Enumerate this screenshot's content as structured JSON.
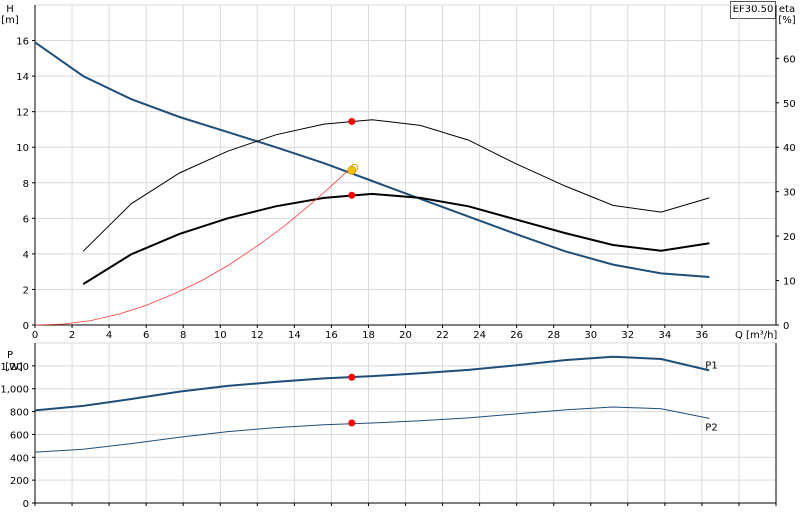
{
  "model_label": "EF30.50",
  "colors": {
    "head": "#1f4e79",
    "eta": "#000000",
    "npsh": "#ff3b3b",
    "dot": "#ff0000",
    "op": "#f2c200",
    "grid": "#d9d9d9"
  },
  "chart_data": [
    {
      "type": "line",
      "id": "top",
      "xlabel": "Q [m³/h]",
      "ylabel": "H\n[m]",
      "ylabel_right": "eta\n[%]",
      "xlim": [
        0,
        40
      ],
      "ylim": [
        0,
        18
      ],
      "ylim_right": [
        0,
        72
      ],
      "xticks": [
        0,
        2,
        4,
        6,
        8,
        10,
        12,
        14,
        16,
        18,
        20,
        22,
        24,
        26,
        28,
        30,
        32,
        34,
        36
      ],
      "yticks": [
        0,
        2,
        4,
        6,
        8,
        10,
        12,
        14,
        16
      ],
      "yticks_right": [
        0,
        10,
        20,
        30,
        40,
        50,
        60
      ],
      "grid": true,
      "series": [
        {
          "role": "head",
          "axis": "left",
          "x": [
            0,
            2.6,
            5.2,
            7.8,
            10.4,
            13.0,
            15.6,
            18.2,
            20.8,
            23.4,
            26.0,
            28.6,
            31.2,
            33.8,
            36.4
          ],
          "values": [
            15.9,
            14.0,
            12.7,
            11.7,
            10.85,
            10.0,
            9.1,
            8.1,
            7.1,
            6.1,
            5.1,
            4.15,
            3.4,
            2.9,
            2.7
          ]
        },
        {
          "role": "eta1",
          "axis": "right",
          "x": [
            2.6,
            5.2,
            7.8,
            10.4,
            13.0,
            15.6,
            18.2,
            20.8,
            23.4,
            26.0,
            28.6,
            31.2,
            33.8,
            36.4
          ],
          "values": [
            16.6,
            27.3,
            34.2,
            39.1,
            42.8,
            45.2,
            46.2,
            44.9,
            41.6,
            36.2,
            31.3,
            26.9,
            25.4,
            28.6
          ]
        },
        {
          "role": "eta2",
          "axis": "right",
          "x": [
            2.6,
            5.2,
            7.8,
            10.4,
            13.0,
            15.6,
            18.2,
            20.8,
            23.4,
            26.0,
            28.6,
            31.2,
            33.8,
            36.4
          ],
          "values": [
            9.2,
            15.9,
            20.5,
            24.0,
            26.7,
            28.6,
            29.5,
            28.6,
            26.7,
            23.7,
            20.7,
            18.0,
            16.7,
            18.4
          ]
        },
        {
          "role": "npsh",
          "axis": "left",
          "x": [
            0,
            1.5,
            3,
            4.5,
            6,
            7.5,
            9,
            10.5,
            12,
            13.5,
            15,
            16.5,
            17.2
          ],
          "values": [
            0,
            0.05,
            0.25,
            0.6,
            1.1,
            1.75,
            2.5,
            3.4,
            4.45,
            5.6,
            6.9,
            8.3,
            9.0
          ]
        }
      ],
      "operating_points": [
        {
          "x": 17.1,
          "value": 11.45,
          "role": "eta1-op"
        },
        {
          "x": 17.1,
          "value": 7.3,
          "role": "eta2-op"
        },
        {
          "x": 17.1,
          "value": 8.7,
          "role": "head-op"
        }
      ]
    },
    {
      "type": "line",
      "id": "bottom",
      "ylabel": "P\n[W]",
      "xlim": [
        0,
        40
      ],
      "ylim": [
        0,
        1400
      ],
      "yticks": [
        0,
        200,
        400,
        600,
        800,
        1000,
        1200
      ],
      "ytick_labels": [
        "0",
        "200",
        "400",
        "600",
        "800",
        "1,000",
        "1,200"
      ],
      "grid": true,
      "series": [
        {
          "name": "P1",
          "x": [
            0,
            2.6,
            5.2,
            7.8,
            10.4,
            13.0,
            15.6,
            18.2,
            20.8,
            23.4,
            26.0,
            28.6,
            31.2,
            33.8,
            36.4
          ],
          "values": [
            810,
            850,
            910,
            975,
            1025,
            1060,
            1090,
            1110,
            1135,
            1165,
            1205,
            1250,
            1280,
            1260,
            1160
          ]
        },
        {
          "name": "P2",
          "x": [
            0,
            2.6,
            5.2,
            7.8,
            10.4,
            13.0,
            15.6,
            18.2,
            20.8,
            23.4,
            26.0,
            28.6,
            31.2,
            33.8,
            36.4
          ],
          "values": [
            445,
            470,
            520,
            575,
            625,
            660,
            685,
            700,
            720,
            745,
            780,
            815,
            840,
            825,
            740
          ]
        }
      ],
      "operating_points": [
        {
          "x": 17.1,
          "value": 1100
        },
        {
          "x": 17.1,
          "value": 700
        }
      ]
    }
  ]
}
